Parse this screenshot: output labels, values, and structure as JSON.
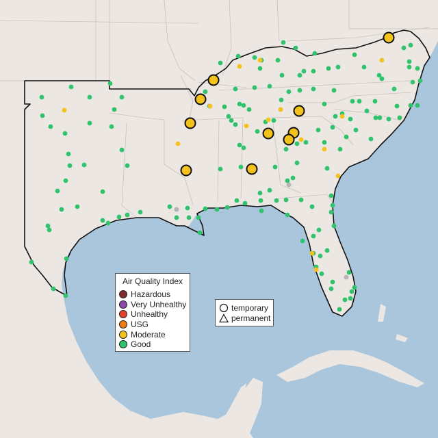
{
  "legend": {
    "title": "Air Quality Index",
    "categories": [
      {
        "label": "Hazardous",
        "color": "#7e2b2b"
      },
      {
        "label": "Very Unhealthy",
        "color": "#8e4aa8"
      },
      {
        "label": "Unhealthy",
        "color": "#e4402a"
      },
      {
        "label": "USG",
        "color": "#f07d14"
      },
      {
        "label": "Moderate",
        "color": "#f4c21d"
      },
      {
        "label": "Good",
        "color": "#2fc36c"
      }
    ]
  },
  "shape_legend": {
    "temporary_label": "temporary",
    "permanent_label": "permanent"
  },
  "colors": {
    "ocean": "#a9c6dc",
    "land": "#ece7e2",
    "good": "#2fc36c",
    "moderate": "#f4c21d",
    "no_data": "#b6b6b6",
    "outline": "#111111"
  }
}
